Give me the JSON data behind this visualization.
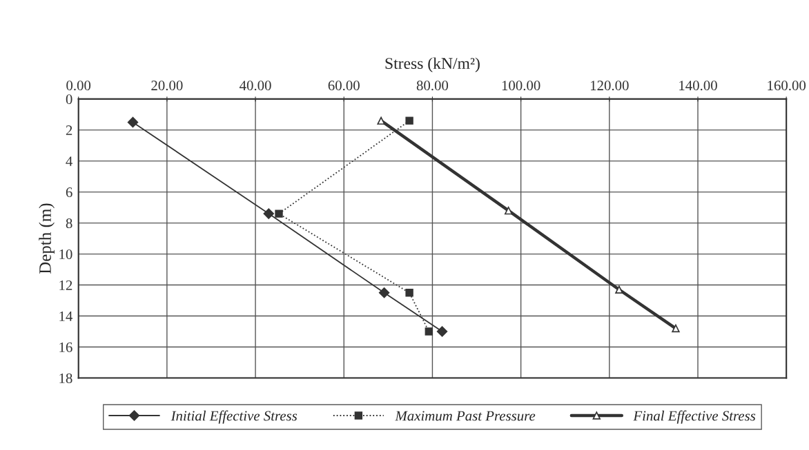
{
  "chart_data": {
    "type": "line",
    "xlabel": "Stress (kN/m²)",
    "ylabel": "Depth (m)",
    "xlim": [
      0,
      160
    ],
    "xticks": [
      {
        "value": 0,
        "label": "0.00"
      },
      {
        "value": 20,
        "label": "20.00"
      },
      {
        "value": 40,
        "label": "40.00"
      },
      {
        "value": 60,
        "label": "60.00"
      },
      {
        "value": 80,
        "label": "80.00"
      },
      {
        "value": 100,
        "label": "100.00"
      },
      {
        "value": 120,
        "label": "120.00"
      },
      {
        "value": 140,
        "label": "140.00"
      },
      {
        "value": 160,
        "label": "160.00"
      }
    ],
    "ylim": [
      18,
      0
    ],
    "yticks": [
      0,
      2,
      4,
      6,
      8,
      10,
      12,
      14,
      16,
      18
    ],
    "grid": true,
    "legend": "bottom",
    "series": [
      {
        "name": "Initial Effective Stress",
        "color": "#333333",
        "marker": "diamond",
        "line_style": "solid",
        "x": [
          12.3,
          43.0,
          69.1,
          82.2
        ],
        "values": [
          1.5,
          7.4,
          12.5,
          15.0
        ]
      },
      {
        "name": "Maximum Past Pressure",
        "color": "#333333",
        "marker": "square",
        "line_style": "dotted",
        "x": [
          74.8,
          45.3,
          74.8,
          79.2
        ],
        "values": [
          1.4,
          7.4,
          12.5,
          15.0
        ]
      },
      {
        "name": "Final Effective Stress",
        "color": "#333333",
        "marker": "triangle",
        "line_style": "solid",
        "x": [
          68.4,
          97.2,
          122.2,
          135.0
        ],
        "values": [
          1.4,
          7.2,
          12.3,
          14.8
        ]
      }
    ]
  }
}
